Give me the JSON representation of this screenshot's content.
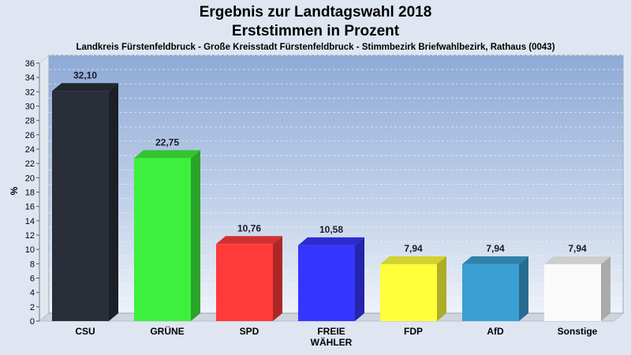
{
  "chart_data": {
    "type": "bar",
    "title": "Ergebnis zur Landtagswahl 2018",
    "subtitle": "Erststimmen in Prozent",
    "caption": "Landkreis Fürstenfeldbruck - Große Kreisstadt Fürstenfeldbruck - Stimmbezirk Briefwahlbezirk, Rathaus (0043)",
    "ylabel": "%",
    "ylim": [
      0,
      36
    ],
    "yticks": [
      0,
      2,
      4,
      6,
      8,
      10,
      12,
      14,
      16,
      18,
      20,
      22,
      24,
      26,
      28,
      30,
      32,
      34,
      36
    ],
    "grid": true,
    "categories": [
      "CSU",
      "GRÜNE",
      "SPD",
      "FREIE WÄHLER",
      "FDP",
      "AfD",
      "Sonstige"
    ],
    "category_lines": [
      [
        "CSU"
      ],
      [
        "GRÜNE"
      ],
      [
        "SPD"
      ],
      [
        "FREIE",
        "WÄHLER"
      ],
      [
        "FDP"
      ],
      [
        "AfD"
      ],
      [
        "Sonstige"
      ]
    ],
    "values": [
      32.1,
      22.75,
      10.76,
      10.58,
      7.94,
      7.94,
      7.94
    ],
    "value_labels": [
      "32,10",
      "22,75",
      "10,76",
      "10,58",
      "7,94",
      "7,94",
      "7,94"
    ],
    "colors": [
      "#2a2e38",
      "#3df03d",
      "#ff3a3a",
      "#3535ff",
      "#ffff3a",
      "#3a9fd2",
      "#fafafa"
    ]
  }
}
